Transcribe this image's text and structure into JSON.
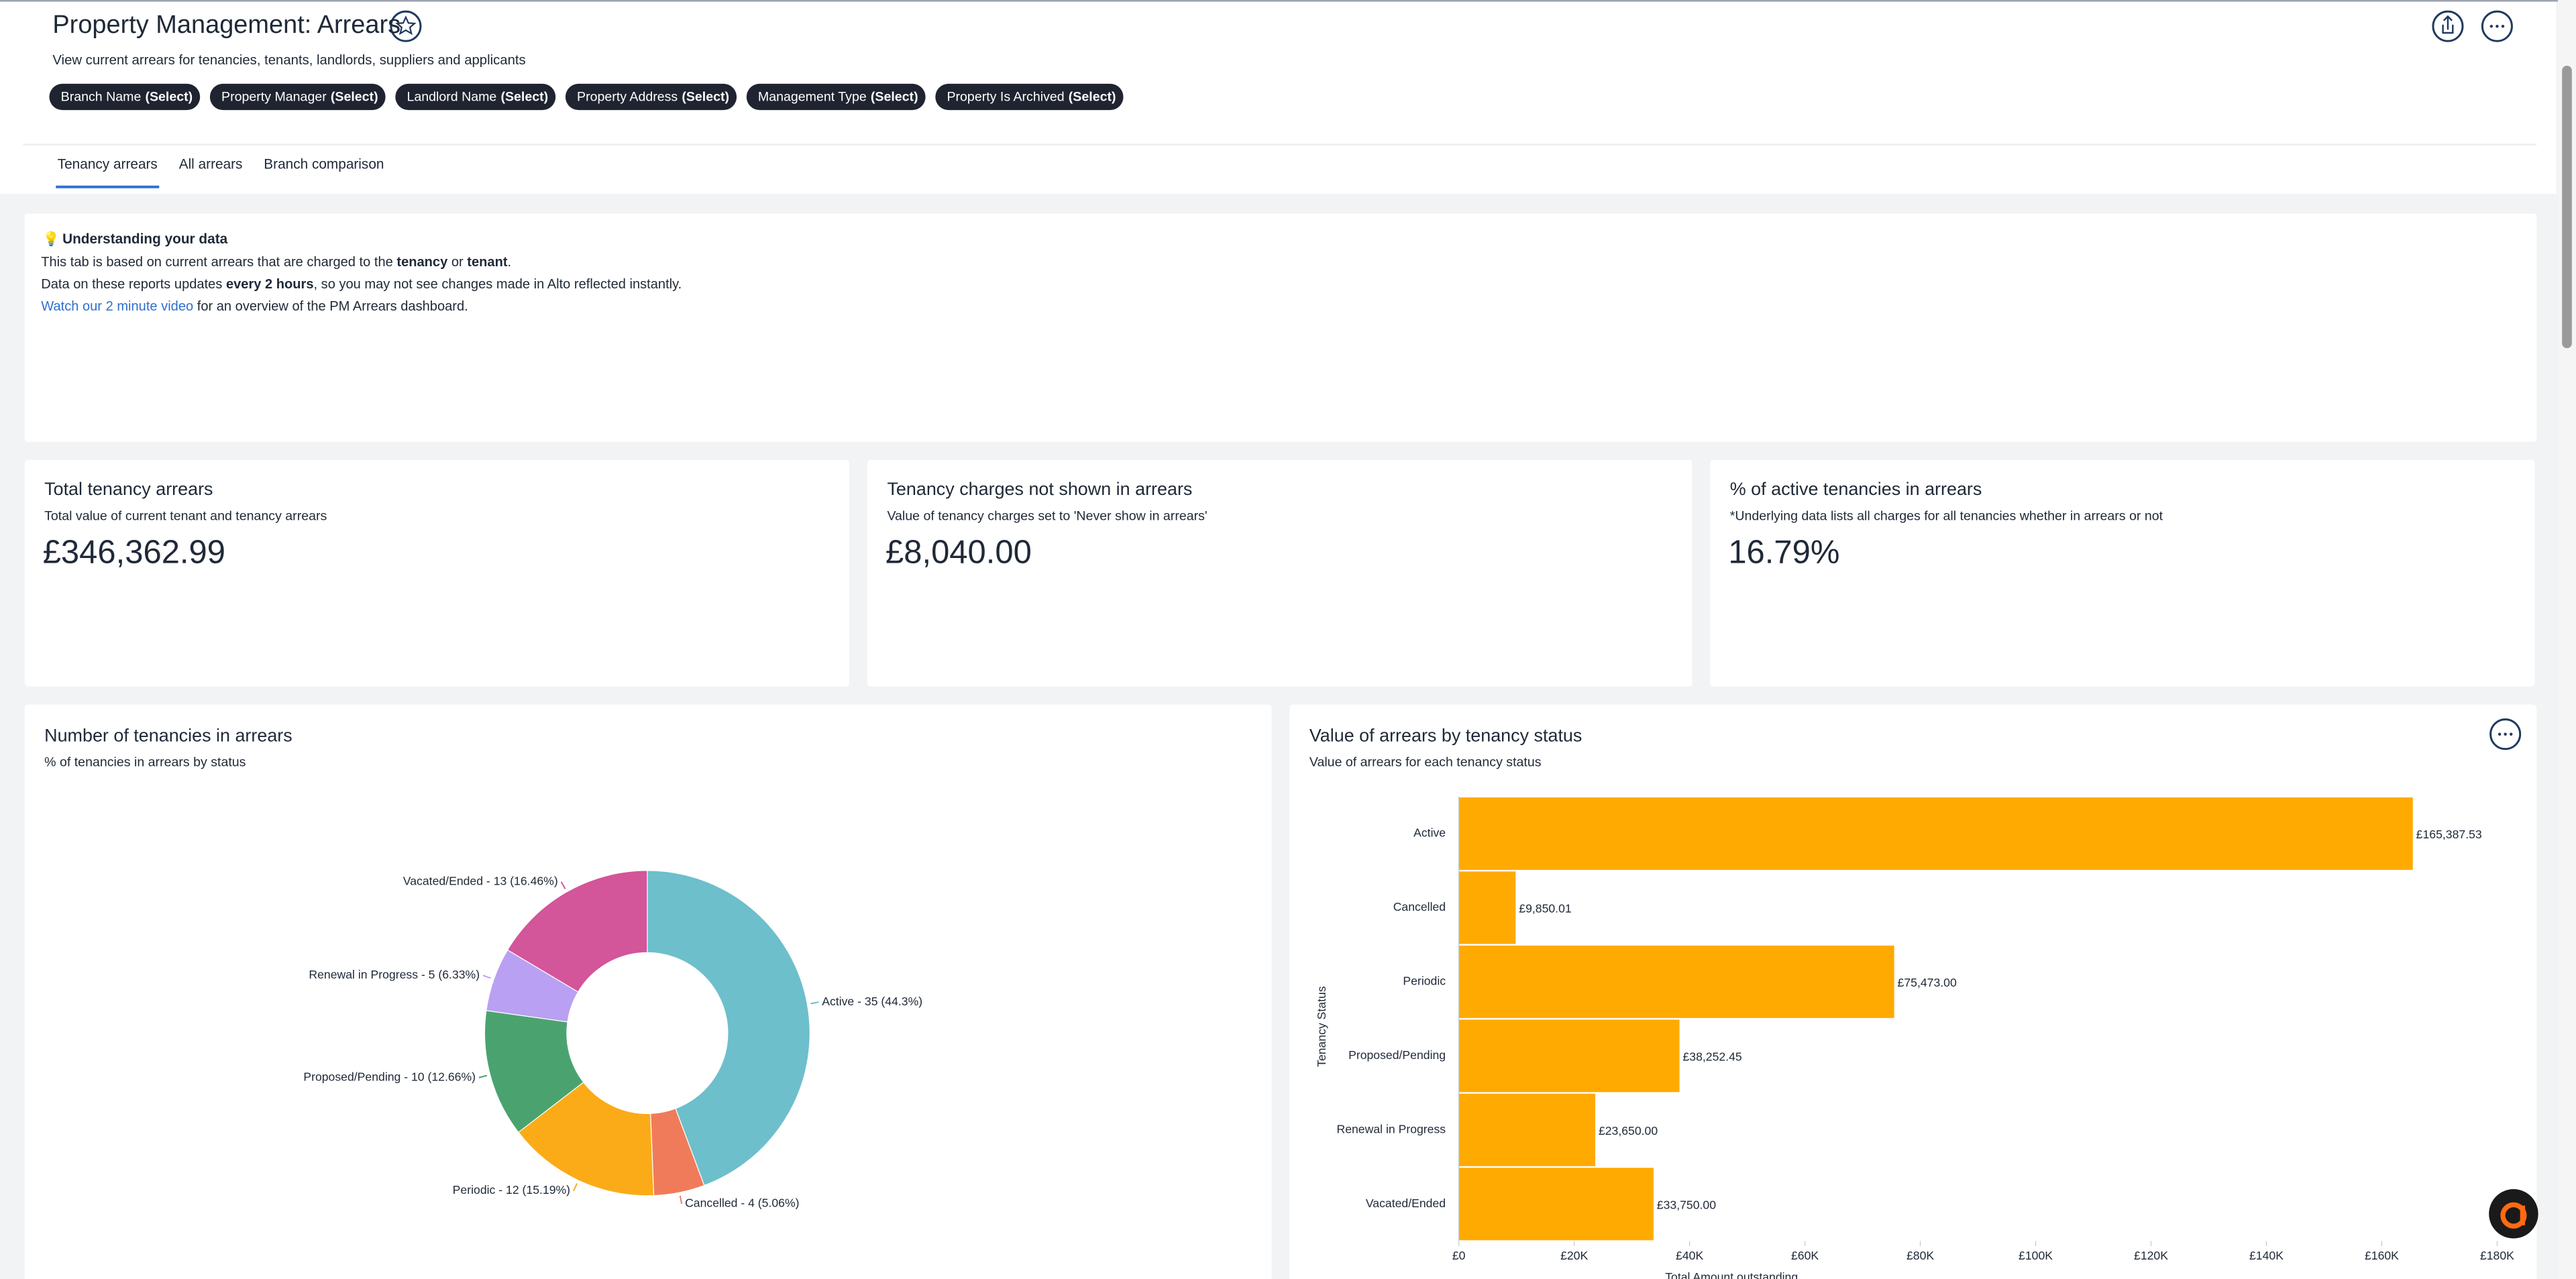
{
  "header": {
    "title": "Property Management: Arrears",
    "subtitle": "View current arrears for tenancies, tenants, landlords, suppliers and applicants",
    "filters": [
      {
        "label": "Branch Name",
        "value": "(Select)"
      },
      {
        "label": "Property Manager",
        "value": "(Select)"
      },
      {
        "label": "Landlord Name",
        "value": "(Select)"
      },
      {
        "label": "Property Address",
        "value": "(Select)"
      },
      {
        "label": "Management Type",
        "value": "(Select)"
      },
      {
        "label": "Property Is Archived",
        "value": "(Select)"
      }
    ]
  },
  "tabs": {
    "items": [
      "Tenancy arrears",
      "All arrears",
      "Branch comparison"
    ],
    "active": 0
  },
  "info": {
    "title": "Understanding your data",
    "lines": [
      [
        "This tab is based on current arrears that are charged to the ",
        {
          "text": "tenancy",
          "style": "bold"
        },
        " or ",
        {
          "text": "tenant",
          "style": "bold"
        },
        "."
      ],
      [
        "Data on these reports updates ",
        {
          "text": "every 2 hours",
          "style": "bold"
        },
        ", so you may not see changes made in Alto reflected instantly."
      ],
      [
        {
          "text": "Watch our 2 minute video",
          "style": "link"
        },
        " for an overview of the PM Arrears dashboard."
      ]
    ]
  },
  "kpis": [
    {
      "title": "Total tenancy arrears",
      "subtitle": "Total value of current tenant and tenancy arrears",
      "value": "£346,362.99"
    },
    {
      "title": "Tenancy charges not shown in arrears",
      "subtitle": "Value of tenancy charges set to 'Never show in arrears'",
      "value": "£8,040.00"
    },
    {
      "title": "% of active tenancies in arrears",
      "subtitle": "*Underlying data lists all charges for all tenancies whether in arrears or not",
      "value": "16.79%"
    }
  ],
  "chart_data": [
    {
      "type": "donut",
      "title": "Number of tenancies in arrears",
      "subtitle": "% of tenancies in arrears by status",
      "values": [
        35,
        4,
        12,
        10,
        5,
        13
      ],
      "value_labels": [
        "Active - 35 (44.3%)",
        "Cancelled - 4 (5.06%)",
        "Periodic - 12 (15.19%)",
        "Proposed/Pending - 10 (12.66%)",
        "Renewal in Progress - 5 (6.33%)",
        "Vacated/Ended - 13 (16.46%)"
      ],
      "colors": [
        "#6dbfcb",
        "#f07b5a",
        "#fbab17",
        "#4aa36f",
        "#b9a0f2",
        "#d3559a"
      ]
    },
    {
      "type": "hbar",
      "title": "Value of arrears by tenancy status",
      "subtitle": "Value of arrears for each tenancy status",
      "categories": [
        "Active",
        "Cancelled",
        "Periodic",
        "Proposed/Pending",
        "Renewal in Progress",
        "Vacated/Ended"
      ],
      "values": [
        165387.53,
        9850.01,
        75473.0,
        38252.45,
        23650.0,
        33750.0
      ],
      "value_labels": [
        "£165,387.53",
        "£9,850.01",
        "£75,473.00",
        "£38,252.45",
        "£23,650.00",
        "£33,750.00"
      ],
      "color": "#ffaa00",
      "xlim": [
        0,
        180000
      ],
      "xticks": [
        {
          "value": 0,
          "label": "£0"
        },
        {
          "value": 20000,
          "label": "£20K"
        },
        {
          "value": 40000,
          "label": "£40K"
        },
        {
          "value": 60000,
          "label": "£60K"
        },
        {
          "value": 80000,
          "label": "£80K"
        },
        {
          "value": 100000,
          "label": "£100K"
        },
        {
          "value": 120000,
          "label": "£120K"
        },
        {
          "value": 140000,
          "label": "£140K"
        },
        {
          "value": 160000,
          "label": "£160K"
        },
        {
          "value": 180000,
          "label": "£180K"
        }
      ],
      "x_label": "Total Amount outstanding",
      "y_label": "Tenancy Status"
    }
  ]
}
